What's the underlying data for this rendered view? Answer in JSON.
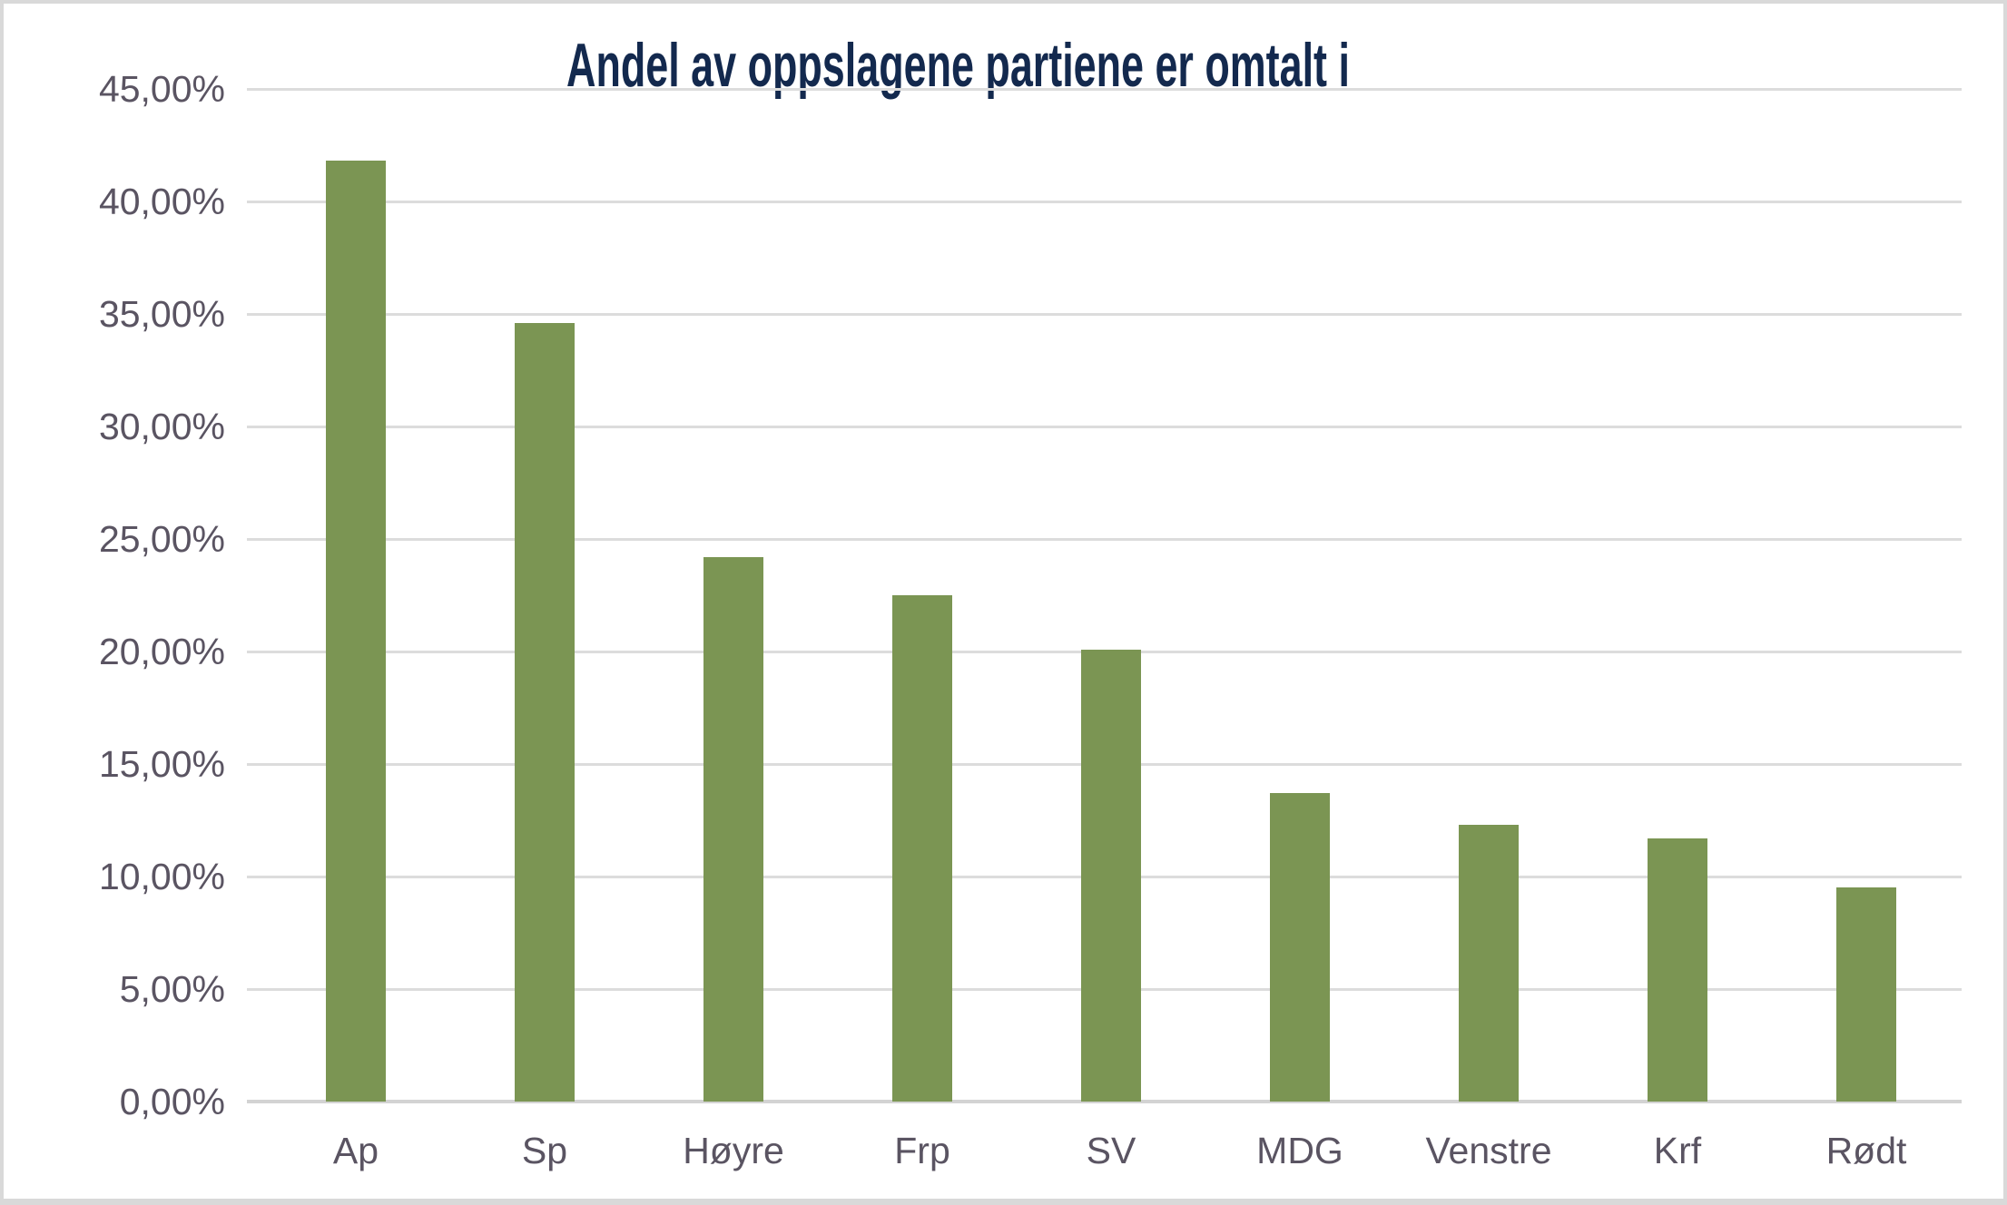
{
  "chart_data": {
    "type": "bar",
    "title": "Andel av oppslagene partiene er omtalt i",
    "categories": [
      "Ap",
      "Sp",
      "Høyre",
      "Frp",
      "SV",
      "MDG",
      "Venstre",
      "Krf",
      "Rødt"
    ],
    "values": [
      41.8,
      34.6,
      24.2,
      22.5,
      20.1,
      13.7,
      12.3,
      11.7,
      9.5
    ],
    "unit": "%",
    "ylim": [
      0,
      45
    ],
    "ytick_step": 5,
    "ytick_labels": [
      "0,00%",
      "5,00%",
      "10,00%",
      "15,00%",
      "20,00%",
      "25,00%",
      "30,00%",
      "35,00%",
      "40,00%",
      "45,00%"
    ],
    "xlabel": "",
    "ylabel": "",
    "grid": "horizontal",
    "legend": "none"
  },
  "colors": {
    "bar": "#7B9553",
    "title": "#13294E",
    "tick_label": "#5A5462",
    "gridline": "#DCDCDC",
    "zero_line": "#D3D3D3",
    "frame_border": "#D9D9D9",
    "background": "#FFFFFF"
  }
}
